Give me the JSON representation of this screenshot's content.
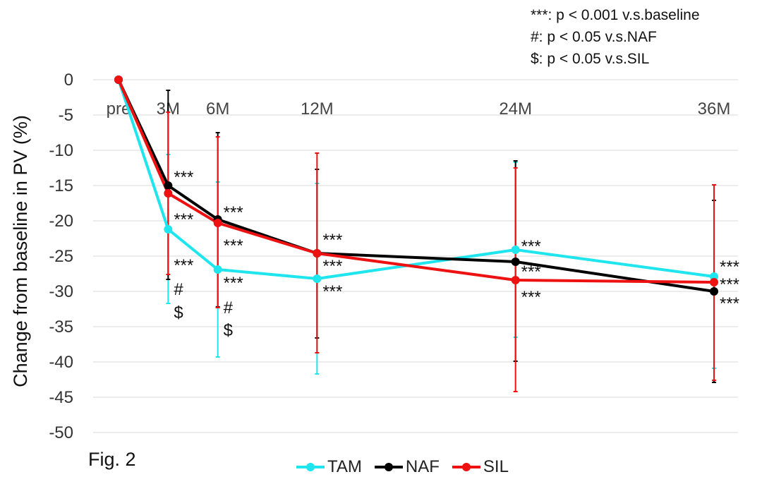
{
  "figure_label": "Fig. 2",
  "notes": [
    "***: p < 0.001 v.s.baseline",
    "#: p < 0.05 v.s.NAF",
    "$: p < 0.05 v.s.SIL"
  ],
  "chart_data": {
    "type": "line",
    "title": "",
    "xlabel": "",
    "ylabel": "Change from baseline in PV (%)",
    "ylim": [
      -50,
      0
    ],
    "yticks": [
      0,
      -5,
      -10,
      -15,
      -20,
      -25,
      -30,
      -35,
      -40,
      -45,
      -50
    ],
    "grid": true,
    "legend_position": "bottom",
    "x_categories": [
      "pre",
      "3M",
      "6M",
      "12M",
      "24M",
      "36M"
    ],
    "x_months": [
      0,
      3,
      6,
      12,
      24,
      36
    ],
    "series": [
      {
        "name": "TAM",
        "color": "#1ee5ee",
        "values": [
          0,
          -21.2,
          -26.9,
          -28.2,
          -24.1,
          -27.9
        ],
        "error_low": [
          null,
          -31.7,
          -39.3,
          -41.7,
          -36.5,
          -40.9
        ],
        "error_high": [
          null,
          -10.6,
          -14.5,
          -14.7,
          -11.7,
          -14.9
        ]
      },
      {
        "name": "NAF",
        "color": "#000000",
        "values": [
          0,
          -15.0,
          -19.8,
          -24.6,
          -25.8,
          -30.0
        ],
        "error_low": [
          null,
          -28.3,
          -32.2,
          -36.6,
          -39.9,
          -42.9
        ],
        "error_high": [
          null,
          -1.5,
          -7.5,
          -12.7,
          -11.5,
          -17.1
        ]
      },
      {
        "name": "SIL",
        "color": "#ee1111",
        "values": [
          0,
          -16.1,
          -20.3,
          -24.6,
          -28.4,
          -28.7
        ],
        "error_low": [
          null,
          -27.6,
          -32.3,
          -38.7,
          -44.2,
          -42.6
        ],
        "error_high": [
          null,
          -4.6,
          -8.1,
          -10.4,
          -12.5,
          -14.9
        ]
      }
    ],
    "annotations": [
      {
        "text": "***",
        "x_index": 1,
        "y": -13.8
      },
      {
        "text": "***",
        "x_index": 1,
        "y": -19.8
      },
      {
        "text": "***",
        "x_index": 1,
        "y": -26.3
      },
      {
        "text": "#",
        "x_index": 1,
        "y": -29.7
      },
      {
        "text": "$",
        "x_index": 1,
        "y": -33.0
      },
      {
        "text": "***",
        "x_index": 2,
        "y": -18.8
      },
      {
        "text": "***",
        "x_index": 2,
        "y": -23.5
      },
      {
        "text": "***",
        "x_index": 2,
        "y": -28.8
      },
      {
        "text": "#",
        "x_index": 2,
        "y": -32.3
      },
      {
        "text": "$",
        "x_index": 2,
        "y": -35.5
      },
      {
        "text": "***",
        "x_index": 3,
        "y": -22.7
      },
      {
        "text": "***",
        "x_index": 3,
        "y": -26.4
      },
      {
        "text": "***",
        "x_index": 3,
        "y": -30.0
      },
      {
        "text": "***",
        "x_index": 4,
        "y": -23.6
      },
      {
        "text": "***",
        "x_index": 4,
        "y": -27.2
      },
      {
        "text": "***",
        "x_index": 4,
        "y": -30.8
      },
      {
        "text": "***",
        "x_index": 5,
        "y": -26.5
      },
      {
        "text": "***",
        "x_index": 5,
        "y": -29.0
      },
      {
        "text": "***",
        "x_index": 5,
        "y": -31.7
      }
    ]
  }
}
